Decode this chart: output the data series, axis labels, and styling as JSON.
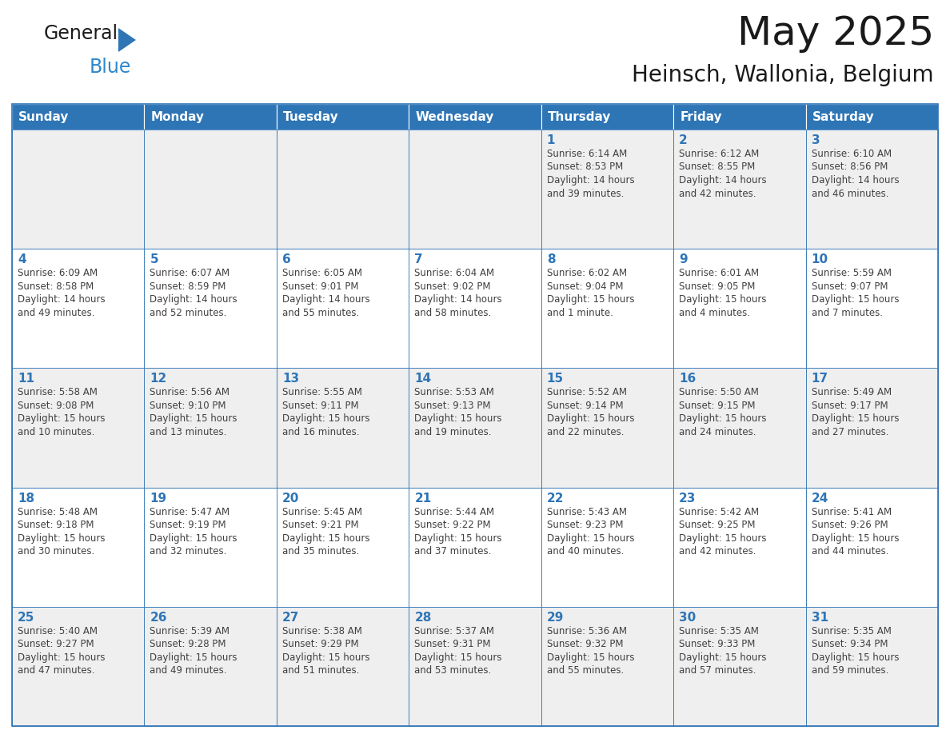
{
  "title": "May 2025",
  "subtitle": "Heinsch, Wallonia, Belgium",
  "header_color": "#2E75B6",
  "header_text_color": "#FFFFFF",
  "cell_bg_row0": "#EFEFEF",
  "cell_bg_row1": "#FFFFFF",
  "cell_bg_row2": "#EFEFEF",
  "cell_bg_row3": "#FFFFFF",
  "cell_bg_row4": "#EFEFEF",
  "border_color": "#2E75B6",
  "text_color": "#404040",
  "day_number_color": "#2E75B6",
  "days_of_week": [
    "Sunday",
    "Monday",
    "Tuesday",
    "Wednesday",
    "Thursday",
    "Friday",
    "Saturday"
  ],
  "weeks": [
    [
      {
        "day": "",
        "info": ""
      },
      {
        "day": "",
        "info": ""
      },
      {
        "day": "",
        "info": ""
      },
      {
        "day": "",
        "info": ""
      },
      {
        "day": "1",
        "info": "Sunrise: 6:14 AM\nSunset: 8:53 PM\nDaylight: 14 hours\nand 39 minutes."
      },
      {
        "day": "2",
        "info": "Sunrise: 6:12 AM\nSunset: 8:55 PM\nDaylight: 14 hours\nand 42 minutes."
      },
      {
        "day": "3",
        "info": "Sunrise: 6:10 AM\nSunset: 8:56 PM\nDaylight: 14 hours\nand 46 minutes."
      }
    ],
    [
      {
        "day": "4",
        "info": "Sunrise: 6:09 AM\nSunset: 8:58 PM\nDaylight: 14 hours\nand 49 minutes."
      },
      {
        "day": "5",
        "info": "Sunrise: 6:07 AM\nSunset: 8:59 PM\nDaylight: 14 hours\nand 52 minutes."
      },
      {
        "day": "6",
        "info": "Sunrise: 6:05 AM\nSunset: 9:01 PM\nDaylight: 14 hours\nand 55 minutes."
      },
      {
        "day": "7",
        "info": "Sunrise: 6:04 AM\nSunset: 9:02 PM\nDaylight: 14 hours\nand 58 minutes."
      },
      {
        "day": "8",
        "info": "Sunrise: 6:02 AM\nSunset: 9:04 PM\nDaylight: 15 hours\nand 1 minute."
      },
      {
        "day": "9",
        "info": "Sunrise: 6:01 AM\nSunset: 9:05 PM\nDaylight: 15 hours\nand 4 minutes."
      },
      {
        "day": "10",
        "info": "Sunrise: 5:59 AM\nSunset: 9:07 PM\nDaylight: 15 hours\nand 7 minutes."
      }
    ],
    [
      {
        "day": "11",
        "info": "Sunrise: 5:58 AM\nSunset: 9:08 PM\nDaylight: 15 hours\nand 10 minutes."
      },
      {
        "day": "12",
        "info": "Sunrise: 5:56 AM\nSunset: 9:10 PM\nDaylight: 15 hours\nand 13 minutes."
      },
      {
        "day": "13",
        "info": "Sunrise: 5:55 AM\nSunset: 9:11 PM\nDaylight: 15 hours\nand 16 minutes."
      },
      {
        "day": "14",
        "info": "Sunrise: 5:53 AM\nSunset: 9:13 PM\nDaylight: 15 hours\nand 19 minutes."
      },
      {
        "day": "15",
        "info": "Sunrise: 5:52 AM\nSunset: 9:14 PM\nDaylight: 15 hours\nand 22 minutes."
      },
      {
        "day": "16",
        "info": "Sunrise: 5:50 AM\nSunset: 9:15 PM\nDaylight: 15 hours\nand 24 minutes."
      },
      {
        "day": "17",
        "info": "Sunrise: 5:49 AM\nSunset: 9:17 PM\nDaylight: 15 hours\nand 27 minutes."
      }
    ],
    [
      {
        "day": "18",
        "info": "Sunrise: 5:48 AM\nSunset: 9:18 PM\nDaylight: 15 hours\nand 30 minutes."
      },
      {
        "day": "19",
        "info": "Sunrise: 5:47 AM\nSunset: 9:19 PM\nDaylight: 15 hours\nand 32 minutes."
      },
      {
        "day": "20",
        "info": "Sunrise: 5:45 AM\nSunset: 9:21 PM\nDaylight: 15 hours\nand 35 minutes."
      },
      {
        "day": "21",
        "info": "Sunrise: 5:44 AM\nSunset: 9:22 PM\nDaylight: 15 hours\nand 37 minutes."
      },
      {
        "day": "22",
        "info": "Sunrise: 5:43 AM\nSunset: 9:23 PM\nDaylight: 15 hours\nand 40 minutes."
      },
      {
        "day": "23",
        "info": "Sunrise: 5:42 AM\nSunset: 9:25 PM\nDaylight: 15 hours\nand 42 minutes."
      },
      {
        "day": "24",
        "info": "Sunrise: 5:41 AM\nSunset: 9:26 PM\nDaylight: 15 hours\nand 44 minutes."
      }
    ],
    [
      {
        "day": "25",
        "info": "Sunrise: 5:40 AM\nSunset: 9:27 PM\nDaylight: 15 hours\nand 47 minutes."
      },
      {
        "day": "26",
        "info": "Sunrise: 5:39 AM\nSunset: 9:28 PM\nDaylight: 15 hours\nand 49 minutes."
      },
      {
        "day": "27",
        "info": "Sunrise: 5:38 AM\nSunset: 9:29 PM\nDaylight: 15 hours\nand 51 minutes."
      },
      {
        "day": "28",
        "info": "Sunrise: 5:37 AM\nSunset: 9:31 PM\nDaylight: 15 hours\nand 53 minutes."
      },
      {
        "day": "29",
        "info": "Sunrise: 5:36 AM\nSunset: 9:32 PM\nDaylight: 15 hours\nand 55 minutes."
      },
      {
        "day": "30",
        "info": "Sunrise: 5:35 AM\nSunset: 9:33 PM\nDaylight: 15 hours\nand 57 minutes."
      },
      {
        "day": "31",
        "info": "Sunrise: 5:35 AM\nSunset: 9:34 PM\nDaylight: 15 hours\nand 59 minutes."
      }
    ]
  ],
  "logo_text_general": "General",
  "logo_text_blue": "Blue",
  "logo_color_general": "#1a1a1a",
  "logo_color_blue": "#2E87CC",
  "logo_triangle_color": "#2E75B6",
  "title_fontsize": 36,
  "subtitle_fontsize": 20,
  "header_fontsize": 11,
  "day_num_fontsize": 11,
  "cell_text_fontsize": 8.5
}
